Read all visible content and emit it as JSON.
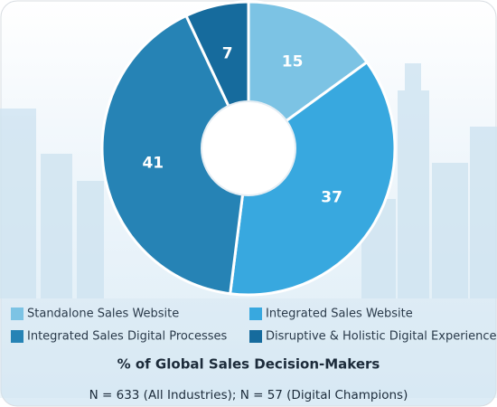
{
  "chart_data": {
    "type": "pie",
    "categories": [
      "Standalone Sales Website",
      "Integrated Sales Website",
      "Integrated Sales Digital Processes",
      "Disruptive & Holistic Digital Experience"
    ],
    "values": [
      15,
      37,
      41,
      7
    ],
    "colors": [
      "#7cc3e4",
      "#38a8df",
      "#2683b5",
      "#166b9d"
    ],
    "title": "% of Global Sales Decision-Makers",
    "note": "N = 633 (All Industries); N = 57 (Digital Champions)"
  }
}
